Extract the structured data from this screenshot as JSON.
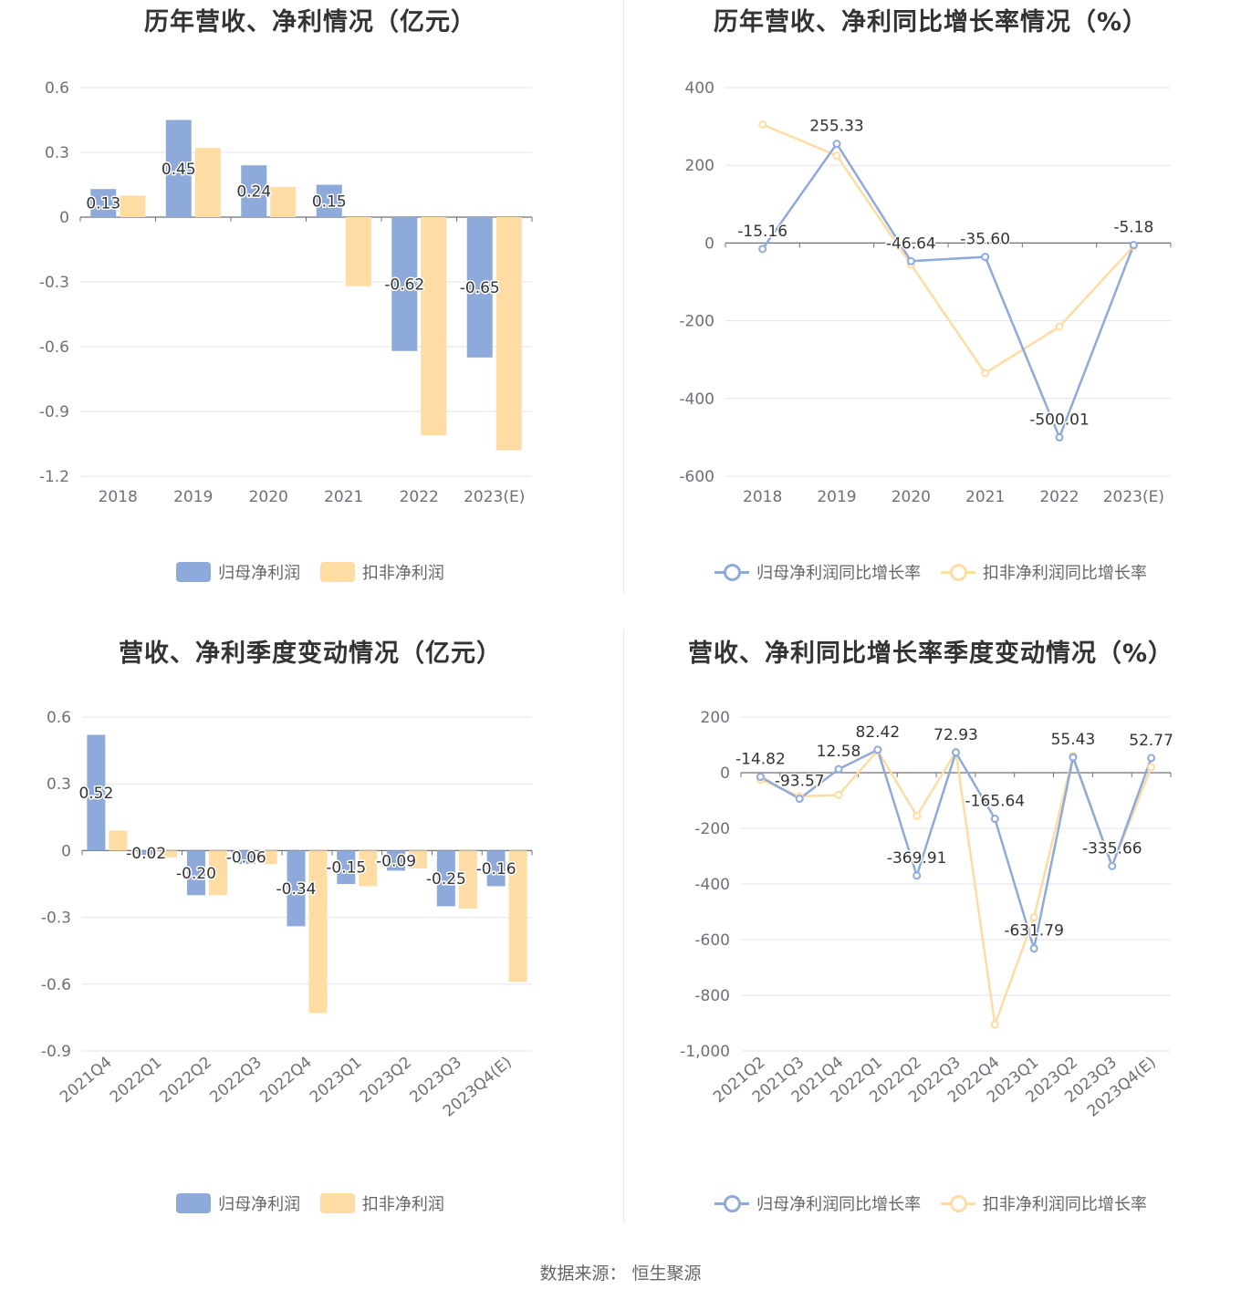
{
  "colors": {
    "series1": "#8eaadb",
    "series2": "#ffdca3",
    "grid": "#e0e6f1",
    "axis": "#6e7079"
  },
  "footer": {
    "source": "数据来源：  恒生聚源"
  },
  "chart_data": [
    {
      "id": "annual-profit",
      "type": "bar",
      "title": "历年营收、净利情况（亿元）",
      "categories": [
        "2018",
        "2019",
        "2020",
        "2021",
        "2022",
        "2023(E)"
      ],
      "yticks": [
        0.6,
        0.3,
        0,
        -0.3,
        -0.6,
        -0.9,
        -1.2
      ],
      "ytick_labels": [
        "0.6",
        "0.3",
        "0",
        "-0.3",
        "-0.6",
        "-0.9",
        "-1.2"
      ],
      "ylim": [
        -1.2,
        0.6
      ],
      "series": [
        {
          "name": "归母净利润",
          "values": [
            0.13,
            0.45,
            0.24,
            0.15,
            -0.62,
            -0.65
          ],
          "labels": [
            "0.13",
            "0.45",
            "0.24",
            "0.15",
            "-0.62",
            "-0.65"
          ]
        },
        {
          "name": "扣非净利润",
          "values": [
            0.1,
            0.32,
            0.14,
            -0.32,
            -1.01,
            -1.08
          ]
        }
      ],
      "legend": "bottom"
    },
    {
      "id": "annual-growth",
      "type": "line",
      "title": "历年营收、净利同比增长率情况（%）",
      "categories": [
        "2018",
        "2019",
        "2020",
        "2021",
        "2022",
        "2023(E)"
      ],
      "yticks": [
        400,
        200,
        0,
        -200,
        -400,
        -600
      ],
      "ytick_labels": [
        "400",
        "200",
        "0",
        "-200",
        "-400",
        "-600"
      ],
      "ylim": [
        -600,
        400
      ],
      "series": [
        {
          "name": "归母净利润同比增长率",
          "values": [
            -15.16,
            255.33,
            -46.64,
            -35.6,
            -500.01,
            -5.18
          ],
          "labels": [
            "-15.16",
            "255.33",
            "-46.64",
            "-35.60",
            "-500.01",
            "-5.18"
          ]
        },
        {
          "name": "扣非净利润同比增长率",
          "values": [
            305,
            225,
            -55,
            -335,
            -215,
            -8
          ]
        }
      ],
      "legend": "bottom"
    },
    {
      "id": "quarterly-profit",
      "type": "bar",
      "title": "营收、净利季度变动情况（亿元）",
      "categories": [
        "2021Q4",
        "2022Q1",
        "2022Q2",
        "2022Q3",
        "2022Q4",
        "2023Q1",
        "2023Q2",
        "2023Q3",
        "2023Q4(E)"
      ],
      "yticks": [
        0.6,
        0.3,
        0,
        -0.3,
        -0.6,
        -0.9
      ],
      "ytick_labels": [
        "0.6",
        "0.3",
        "0",
        "-0.3",
        "-0.6",
        "-0.9"
      ],
      "ylim": [
        -0.9,
        0.6
      ],
      "series": [
        {
          "name": "归母净利润",
          "values": [
            0.52,
            -0.02,
            -0.2,
            -0.06,
            -0.34,
            -0.15,
            -0.09,
            -0.25,
            -0.16
          ],
          "labels": [
            "0.52",
            "-0.02",
            "-0.20",
            "-0.06",
            "-0.34",
            "-0.15",
            "-0.09",
            "-0.25",
            "-0.16"
          ]
        },
        {
          "name": "扣非净利润",
          "values": [
            0.09,
            -0.03,
            -0.2,
            -0.06,
            -0.73,
            -0.16,
            -0.08,
            -0.26,
            -0.59
          ]
        }
      ],
      "legend": "bottom"
    },
    {
      "id": "quarterly-growth",
      "type": "line",
      "title": "营收、净利同比增长率季度变动情况（%）",
      "categories": [
        "2021Q2",
        "2021Q3",
        "2021Q4",
        "2022Q1",
        "2022Q2",
        "2022Q3",
        "2022Q4",
        "2023Q1",
        "2023Q2",
        "2023Q3",
        "2023Q4(E)"
      ],
      "yticks": [
        200,
        0,
        -200,
        -400,
        -600,
        -800,
        -1000
      ],
      "ytick_labels": [
        "200",
        "0",
        "-200",
        "-400",
        "-600",
        "-800",
        "-1,000"
      ],
      "ylim": [
        -1000,
        200
      ],
      "series": [
        {
          "name": "归母净利润同比增长率",
          "values": [
            -14.82,
            -93.57,
            12.58,
            82.42,
            -369.91,
            72.93,
            -165.64,
            -631.79,
            55.43,
            -335.66,
            52.77
          ],
          "labels": [
            "-14.82",
            "-93.57",
            "12.58",
            "82.42",
            "-369.91",
            "72.93",
            "-165.64",
            "-631.79",
            "55.43",
            "-335.66",
            "52.77"
          ]
        },
        {
          "name": "扣非净利润同比增长率",
          "values": [
            -25,
            -85,
            -80,
            80,
            -155,
            75,
            -905,
            -520,
            60,
            -335,
            20
          ]
        }
      ],
      "legend": "bottom"
    }
  ]
}
